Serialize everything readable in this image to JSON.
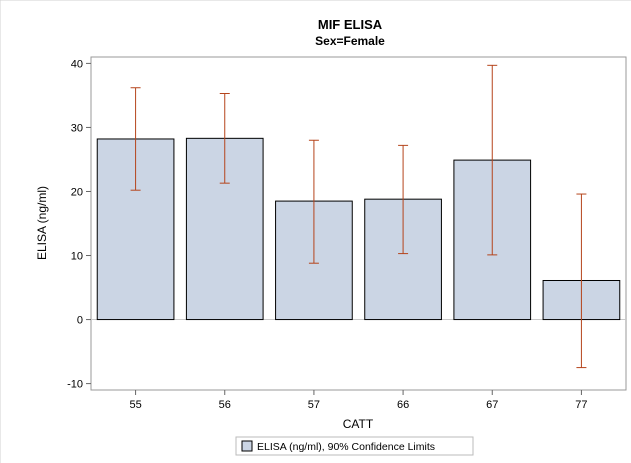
{
  "chart_data": {
    "type": "bar",
    "title": "MIF ELISA",
    "subtitle": "Sex=Female",
    "xlabel": "CATT",
    "ylabel": "ELISA (ng/ml)",
    "categories": [
      "55",
      "56",
      "57",
      "66",
      "67",
      "77"
    ],
    "series": [
      {
        "name": "ELISA (ng/ml), 90% Confidence Limits",
        "values": [
          28.2,
          28.3,
          18.5,
          18.8,
          24.9,
          6.1
        ],
        "lower": [
          20.2,
          21.3,
          8.8,
          10.3,
          10.1,
          -7.5
        ],
        "upper": [
          36.2,
          35.3,
          28.0,
          27.2,
          39.7,
          19.6
        ]
      }
    ],
    "ylim": [
      -11,
      41
    ],
    "yticks": [
      -10,
      0,
      10,
      20,
      30,
      40
    ],
    "grid": false,
    "legend_position": "bottom-center",
    "colors": {
      "bar_fill": "#cbd5e4",
      "bar_stroke": "#000000",
      "error_bar": "#b5441b",
      "axis": "#666666",
      "frame": "#d0d0d0"
    }
  }
}
